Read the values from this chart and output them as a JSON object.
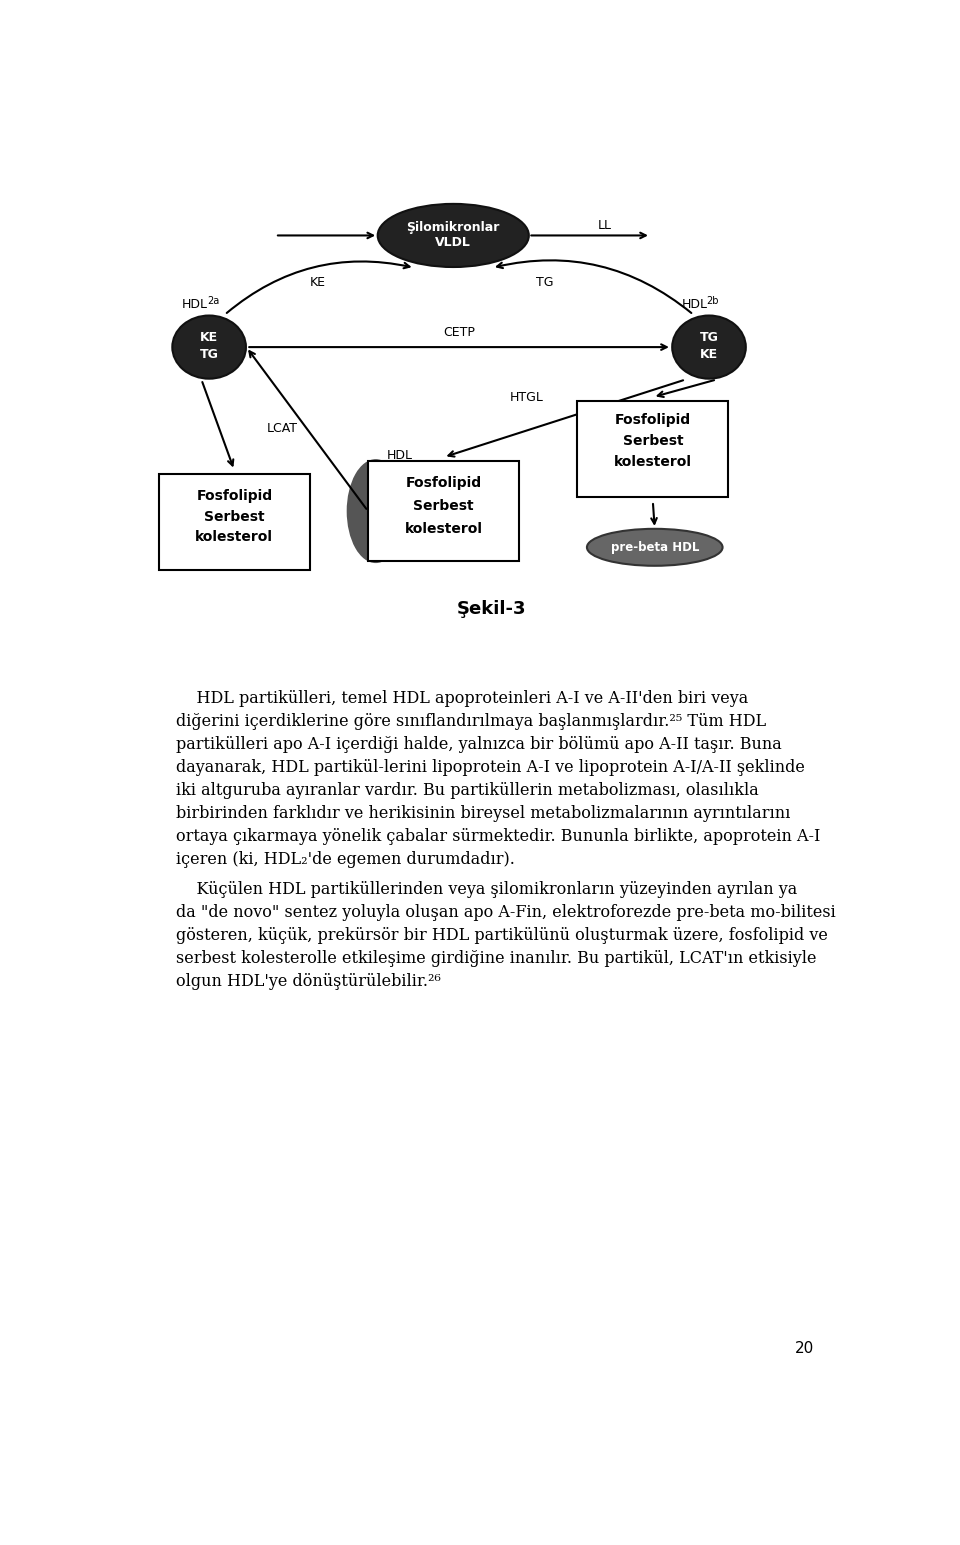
{
  "bg_color": "#ffffff",
  "fig_width": 9.6,
  "fig_height": 15.45,
  "title": "Şekil-3",
  "page_number": "20",
  "lines_p1": [
    "    HDL partikülleri, temel HDL apoproteinleri A-I ve A-II'den biri veya",
    "diğerini içerdiklerine göre sınıflandırılmaya başlanmışlardır.²⁵ Tüm HDL",
    "partikülleri apo A-I içerdiği halde, yalnızca bir bölümü apo A-II taşır. Buna",
    "dayanarak, HDL partikül-lerini lipoprotein A-I ve lipoprotein A-I/A-II şeklinde",
    "iki altguruba ayıranlar vardır. Bu partiküllerin metabolizması, olasılıkla",
    "birbirinden farklıdır ve herikisinin bireysel metabolizmalarının ayrıntılarını",
    "ortaya çıkarmaya yönelik çabalar sürmektedir. Bununla birlikte, apoprotein A-I",
    "içeren (ki, HDL₂'de egemen durumdadır)."
  ],
  "lines_p2": [
    "    Küçülen HDL partiküllerinden veya şilomikronların yüzeyinden ayrılan ya",
    "da \"de novo\" sentez yoluyla oluşan apo A-Fin, elektroforezde pre-beta mo-bilitesi",
    "gösteren, küçük, prekürsör bir HDL partikülünü oluşturmak üzere, fosfolipid ve",
    "serbest kolesterolle etkileşime girdiğine inanılır. Bu partikül, LCAT'ın etkisiyle",
    "olgun HDL'ye dönüştürülebilir.²⁶"
  ]
}
